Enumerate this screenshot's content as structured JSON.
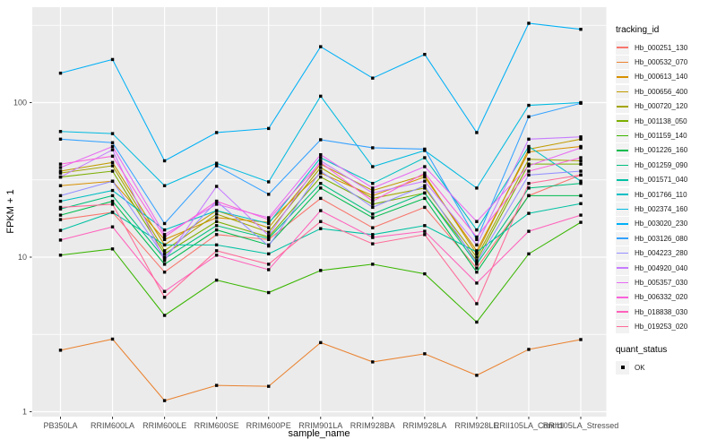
{
  "colors": {
    "background": "#FFFFFF",
    "panel_bg": "#EBEBEB",
    "grid": "#FFFFFF",
    "axis_text": "#4D4D4D",
    "axis_title": "#000000",
    "point": "#000000",
    "legend_key_bg": "#F2F2F2"
  },
  "chart_data": {
    "type": "line",
    "title": "",
    "xlabel": "sample_name",
    "ylabel": "FPKM + 1",
    "y_scale": "log10",
    "ylim": [
      1,
      450
    ],
    "grid": "on",
    "legend_position": "right",
    "y_ticks": [
      {
        "label": "1",
        "value": 1
      },
      {
        "label": "10",
        "value": 10
      },
      {
        "label": "100",
        "value": 100
      }
    ],
    "y_minor_breaks": [
      3.1623,
      31.6228,
      316.228
    ],
    "categories": [
      "PB350LA",
      "RRIM600LA",
      "RRIM600LE",
      "RRIM600SE",
      "RRIM600PE",
      "RRIM901LA",
      "RRIM928BA",
      "RRIM928LA",
      "RRIM928LE",
      "RRII105LA_Control",
      "RRII105LA_Stressed"
    ],
    "series": [
      {
        "id": "Hb_000251_130",
        "color": "#F8766D",
        "values": [
          17.5,
          19.5,
          8,
          14,
          13,
          24,
          15.5,
          21,
          8.5,
          25,
          34
        ]
      },
      {
        "id": "Hb_000532_070",
        "color": "#EA8331",
        "values": [
          2.5,
          2.95,
          1.18,
          1.48,
          1.46,
          2.8,
          2.1,
          2.37,
          1.72,
          2.53,
          2.93
        ]
      },
      {
        "id": "Hb_000613_140",
        "color": "#D89000",
        "values": [
          29,
          31,
          13,
          18,
          16.8,
          35,
          25,
          33,
          11,
          48,
          52
        ]
      },
      {
        "id": "Hb_000656_400",
        "color": "#C09B00",
        "values": [
          36,
          41,
          12,
          20,
          15.5,
          40,
          27,
          34,
          10.5,
          50,
          58
        ]
      },
      {
        "id": "Hb_000720_120",
        "color": "#A3A500",
        "values": [
          35,
          39,
          11,
          19,
          14.5,
          38,
          24,
          28,
          10,
          43,
          42
        ]
      },
      {
        "id": "Hb_001138_050",
        "color": "#7CAE00",
        "values": [
          33,
          36,
          10.5,
          17,
          13.5,
          33,
          22,
          26,
          9.5,
          40,
          40
        ]
      },
      {
        "id": "Hb_001159_140",
        "color": "#39B600",
        "values": [
          10.3,
          11.3,
          4.2,
          7.1,
          5.9,
          8.2,
          9,
          7.8,
          3.8,
          10.5,
          16.8
        ]
      },
      {
        "id": "Hb_001226_160",
        "color": "#00BB4E",
        "values": [
          18.7,
          23,
          9,
          15,
          12,
          28,
          18,
          24,
          8,
          25,
          25
        ]
      },
      {
        "id": "Hb_001259_090",
        "color": "#00BF7D",
        "values": [
          20.5,
          25,
          9.8,
          16,
          13.2,
          30,
          19,
          26,
          9,
          28,
          30
        ]
      },
      {
        "id": "Hb_001571_040",
        "color": "#00C1A3",
        "values": [
          14.9,
          19.5,
          12,
          12,
          10.5,
          15.3,
          14,
          16,
          10.8,
          19.2,
          22.2
        ]
      },
      {
        "id": "Hb_001766_110",
        "color": "#00BFC4",
        "values": [
          23,
          27,
          15,
          20,
          16.5,
          44,
          30,
          44,
          15,
          52,
          31
        ]
      },
      {
        "id": "Hb_002374_160",
        "color": "#00BAE0",
        "values": [
          65,
          63,
          29,
          40.5,
          30.7,
          110,
          38.5,
          49,
          28,
          96,
          100
        ]
      },
      {
        "id": "Hb_003020_230",
        "color": "#00B0F6",
        "values": [
          155,
          190,
          42,
          64,
          68,
          230,
          144,
          205,
          64,
          326,
          298
        ]
      },
      {
        "id": "Hb_003126_080",
        "color": "#35A2FF",
        "values": [
          58,
          55,
          16.5,
          39,
          25.5,
          57.5,
          51,
          50,
          13,
          81,
          99
        ]
      },
      {
        "id": "Hb_004223_280",
        "color": "#9590FF",
        "values": [
          25,
          31,
          10,
          23,
          11.8,
          36,
          21,
          29,
          9.2,
          34,
          36
        ]
      },
      {
        "id": "Hb_004920_040",
        "color": "#C77CFF",
        "values": [
          33,
          49.5,
          9.5,
          28.7,
          13.8,
          42,
          26,
          31,
          12,
          58,
          60
        ]
      },
      {
        "id": "Hb_005357_030",
        "color": "#E76BF3",
        "values": [
          38,
          52,
          14,
          22,
          18,
          46,
          28,
          38.5,
          17,
          39,
          51
        ]
      },
      {
        "id": "Hb_006332_020",
        "color": "#FA62DB",
        "values": [
          40,
          45,
          13.5,
          23,
          17.5,
          41,
          23,
          35,
          13.5,
          36,
          44
        ]
      },
      {
        "id": "Hb_018838_030",
        "color": "#FF62BC",
        "values": [
          12.9,
          15.7,
          6,
          10.3,
          8.3,
          20,
          13.4,
          14.7,
          6.8,
          14.7,
          18.7
        ]
      },
      {
        "id": "Hb_019253_020",
        "color": "#FF6A98",
        "values": [
          21,
          22,
          5.5,
          11,
          9,
          17,
          12.2,
          14,
          5,
          30,
          34
        ]
      }
    ],
    "legend": {
      "color_title": "tracking_id",
      "shape_title": "quant_status",
      "shape_items": [
        {
          "label": "OK"
        }
      ]
    }
  }
}
